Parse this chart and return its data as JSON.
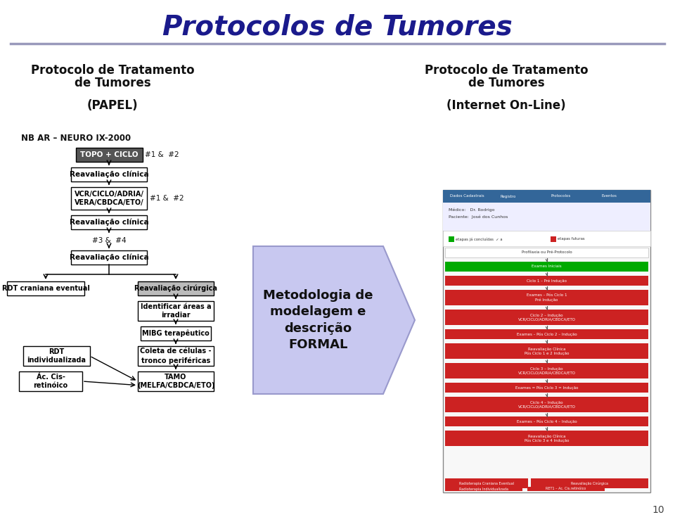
{
  "title": "Protocolos de Tumores",
  "title_color": "#1a1a8c",
  "title_fontsize": 28,
  "bg_color": "#ffffff",
  "left_header_line1": "Protocolo de Tratamento",
  "left_header_line2": "de Tumores",
  "left_header_line3": "(PAPEL)",
  "right_header_line1": "Protocolo de Tratamento",
  "right_header_line2": "de Tumores",
  "right_header_line3": "(Internet On-Line)",
  "nb_label": "NB AR – NEURO IX-2000",
  "arrow_box_text": "Metodologia de\nmodelagem e\ndescrição\nFORMAL",
  "page_number": "10",
  "separator_color": "#9999bb",
  "big_arrow_color": "#c8c8f0",
  "big_arrow_border": "#9999cc"
}
